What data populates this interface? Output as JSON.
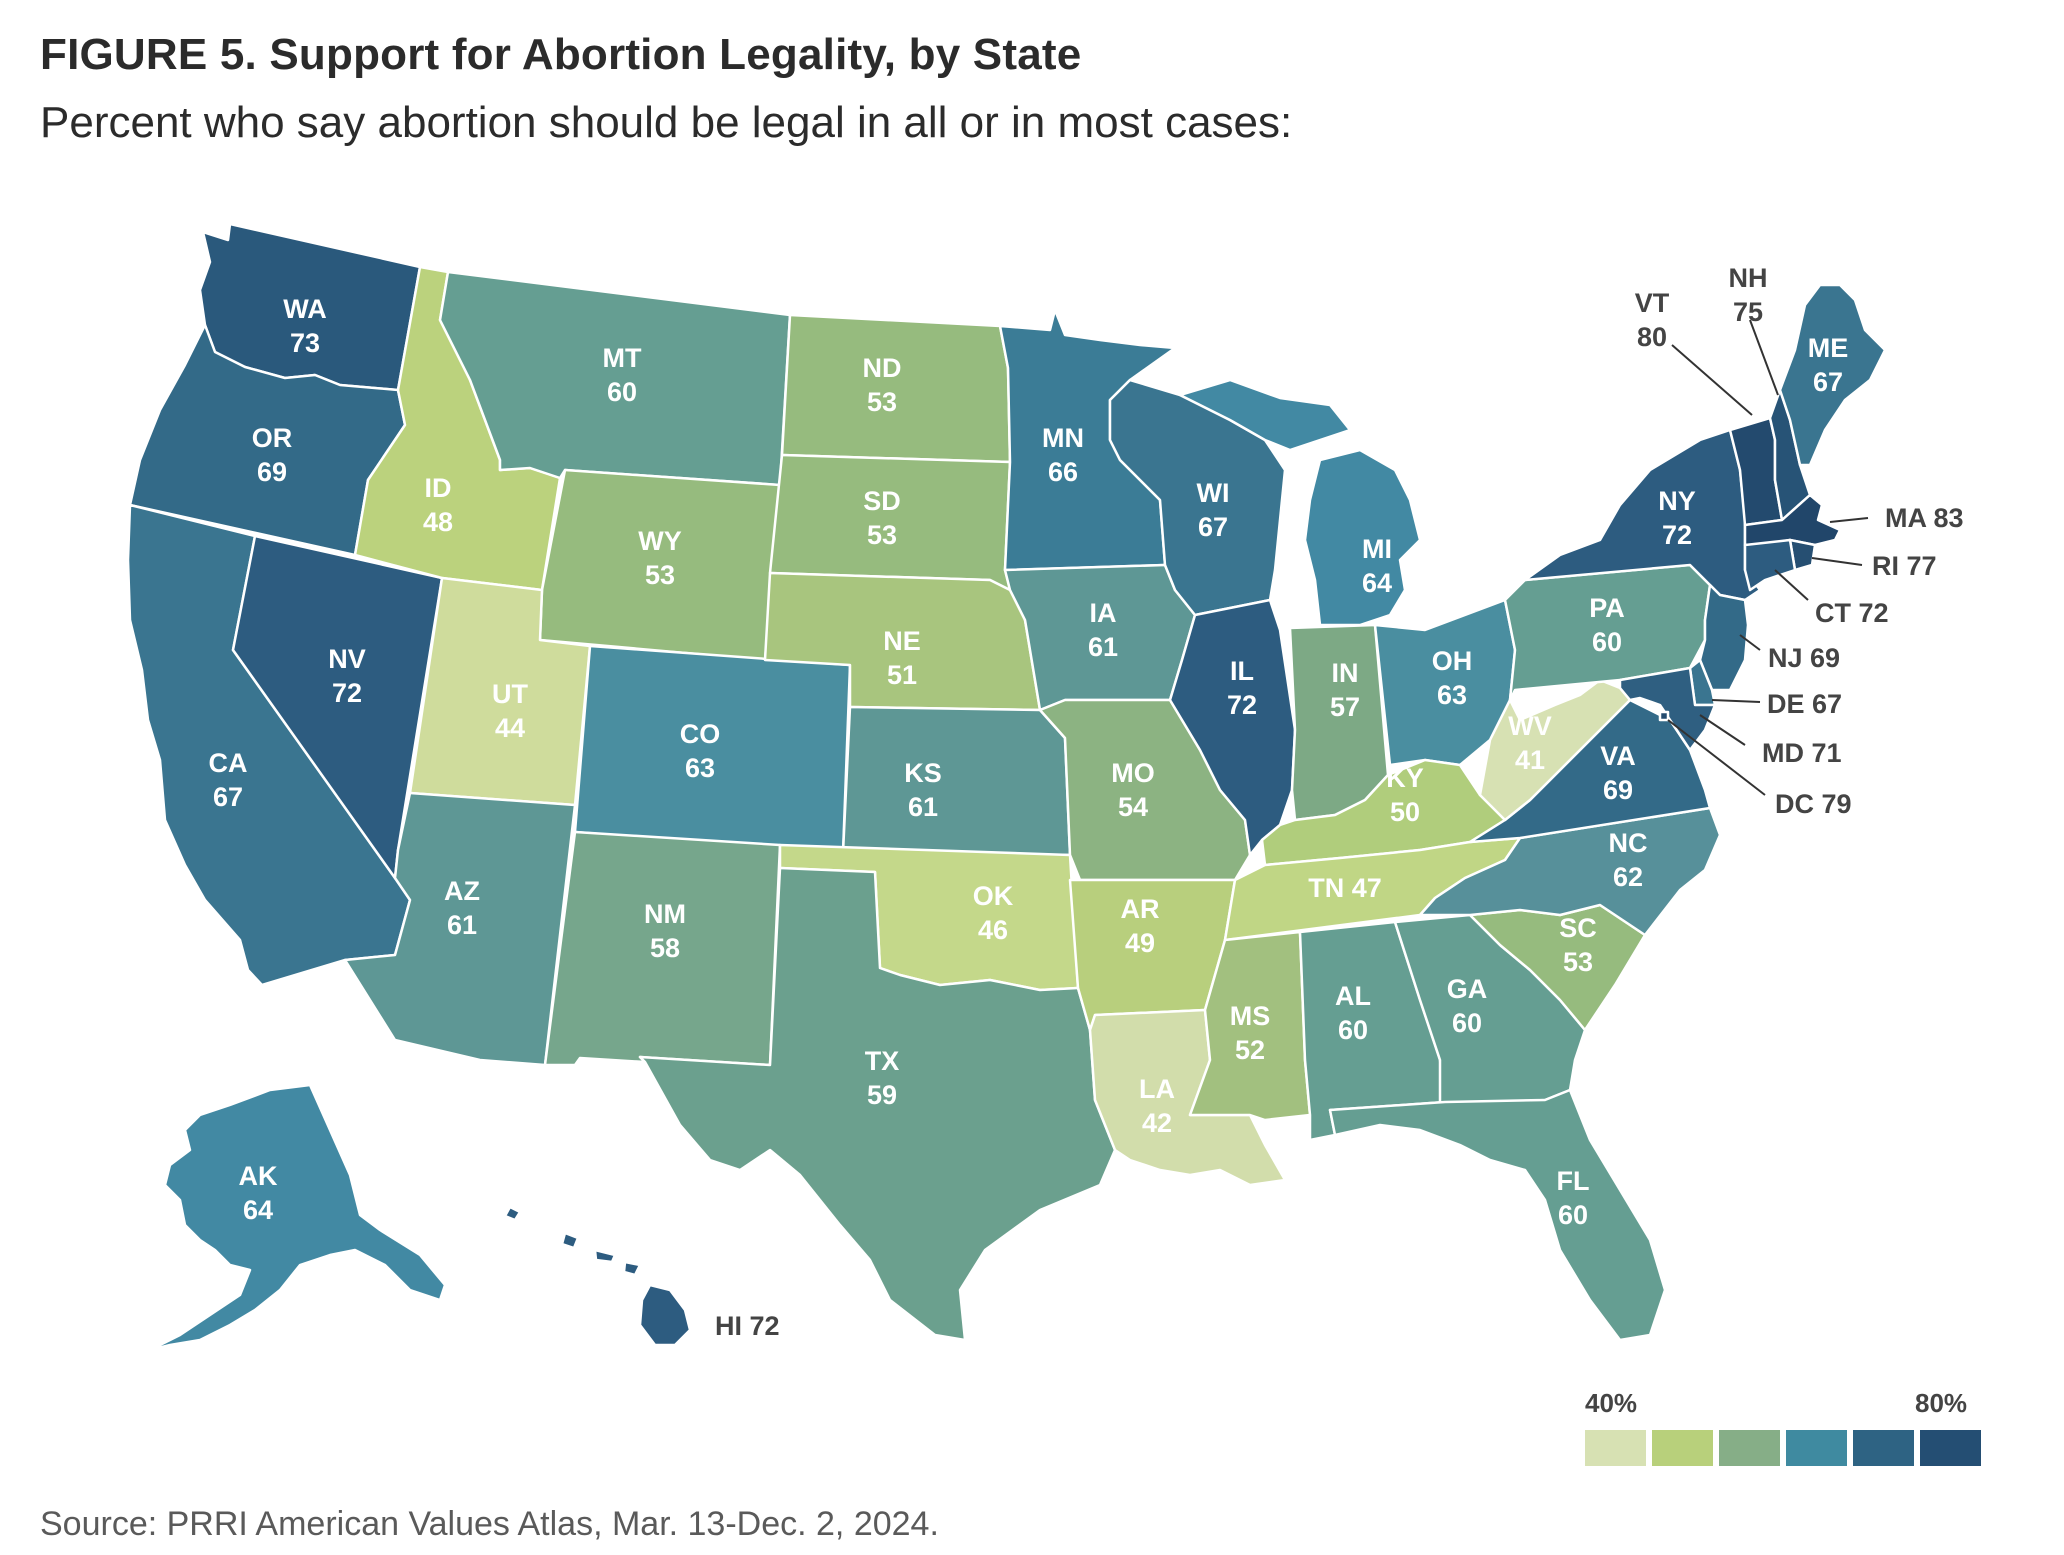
{
  "header": {
    "title": "FIGURE 5. Support for Abortion Legality, by State",
    "subtitle": "Percent who say abortion should be legal in all or in most cases:"
  },
  "legend": {
    "low_label": "40%",
    "high_label": "80%",
    "colors": [
      "#d7e1b3",
      "#b8d07b",
      "#86ae87",
      "#3f8aa0",
      "#2e6383",
      "#244e73"
    ]
  },
  "source": "Source: PRRI American Values Atlas, Mar. 13-Dec. 2, 2024.",
  "colors": {
    "c44": "#cfdc9c",
    "c41": "#d7e1b3",
    "c42": "#d2ddab",
    "c46": "#c4d88a",
    "c47": "#c0d685",
    "c48": "#bbd27d",
    "c49": "#b8cf7d",
    "c50": "#b0cd7c",
    "c51": "#a8c57e",
    "c52": "#a2c07f",
    "c53": "#96bb7e",
    "c54": "#8cb382",
    "c57": "#7da985",
    "c58": "#76a68c",
    "c59": "#6ba08e",
    "c60": "#659e92",
    "c61": "#5e9795",
    "c62": "#57909a",
    "c63": "#4a8ea0",
    "c64": "#4289a3",
    "c66": "#3b7c96",
    "c67": "#3a7590",
    "c69": "#336a88",
    "c71": "#2f5f81",
    "c72": "#2d5c80",
    "c73": "#2a597c",
    "c75": "#275376",
    "c77": "#264f72",
    "c79": "#244b6f",
    "c80": "#234a6e",
    "c83": "#21466a"
  },
  "chart_data": {
    "type": "choropleth",
    "title": "FIGURE 5. Support for Abortion Legality, by State",
    "subtitle": "Percent who say abortion should be legal in all or in most cases:",
    "legend_range": [
      40,
      80
    ],
    "states": [
      {
        "abbr": "WA",
        "value": 73
      },
      {
        "abbr": "OR",
        "value": 69
      },
      {
        "abbr": "CA",
        "value": 67
      },
      {
        "abbr": "NV",
        "value": 72
      },
      {
        "abbr": "ID",
        "value": 48
      },
      {
        "abbr": "MT",
        "value": 60
      },
      {
        "abbr": "WY",
        "value": 53
      },
      {
        "abbr": "UT",
        "value": 44
      },
      {
        "abbr": "AZ",
        "value": 61
      },
      {
        "abbr": "CO",
        "value": 63
      },
      {
        "abbr": "NM",
        "value": 58
      },
      {
        "abbr": "ND",
        "value": 53
      },
      {
        "abbr": "SD",
        "value": 53
      },
      {
        "abbr": "NE",
        "value": 51
      },
      {
        "abbr": "KS",
        "value": 61
      },
      {
        "abbr": "OK",
        "value": 46
      },
      {
        "abbr": "TX",
        "value": 59
      },
      {
        "abbr": "MN",
        "value": 66
      },
      {
        "abbr": "IA",
        "value": 61
      },
      {
        "abbr": "MO",
        "value": 54
      },
      {
        "abbr": "AR",
        "value": 49
      },
      {
        "abbr": "LA",
        "value": 42
      },
      {
        "abbr": "WI",
        "value": 67
      },
      {
        "abbr": "IL",
        "value": 72
      },
      {
        "abbr": "MI",
        "value": 64
      },
      {
        "abbr": "IN",
        "value": 57
      },
      {
        "abbr": "OH",
        "value": 63
      },
      {
        "abbr": "KY",
        "value": 50
      },
      {
        "abbr": "TN",
        "value": 47
      },
      {
        "abbr": "MS",
        "value": 52
      },
      {
        "abbr": "AL",
        "value": 60
      },
      {
        "abbr": "GA",
        "value": 60
      },
      {
        "abbr": "FL",
        "value": 60
      },
      {
        "abbr": "SC",
        "value": 53
      },
      {
        "abbr": "NC",
        "value": 62
      },
      {
        "abbr": "VA",
        "value": 69
      },
      {
        "abbr": "WV",
        "value": 41
      },
      {
        "abbr": "PA",
        "value": 60
      },
      {
        "abbr": "NY",
        "value": 72
      },
      {
        "abbr": "VT",
        "value": 80
      },
      {
        "abbr": "NH",
        "value": 75
      },
      {
        "abbr": "ME",
        "value": 67
      },
      {
        "abbr": "MA",
        "value": 83
      },
      {
        "abbr": "RI",
        "value": 77
      },
      {
        "abbr": "CT",
        "value": 72
      },
      {
        "abbr": "NJ",
        "value": 69
      },
      {
        "abbr": "DE",
        "value": 67
      },
      {
        "abbr": "MD",
        "value": 71
      },
      {
        "abbr": "DC",
        "value": 79
      },
      {
        "abbr": "AK",
        "value": 64
      },
      {
        "abbr": "HI",
        "value": 72
      }
    ]
  },
  "labels": {
    "WA": {
      "abbr": "WA",
      "value": "73"
    },
    "OR": {
      "abbr": "OR",
      "value": "69"
    },
    "CA": {
      "abbr": "CA",
      "value": "67"
    },
    "NV": {
      "abbr": "NV",
      "value": "72"
    },
    "ID": {
      "abbr": "ID",
      "value": "48"
    },
    "MT": {
      "abbr": "MT",
      "value": "60"
    },
    "WY": {
      "abbr": "WY",
      "value": "53"
    },
    "UT": {
      "abbr": "UT",
      "value": "44"
    },
    "AZ": {
      "abbr": "AZ",
      "value": "61"
    },
    "CO": {
      "abbr": "CO",
      "value": "63"
    },
    "NM": {
      "abbr": "NM",
      "value": "58"
    },
    "ND": {
      "abbr": "ND",
      "value": "53"
    },
    "SD": {
      "abbr": "SD",
      "value": "53"
    },
    "NE": {
      "abbr": "NE",
      "value": "51"
    },
    "KS": {
      "abbr": "KS",
      "value": "61"
    },
    "OK": {
      "abbr": "OK",
      "value": "46"
    },
    "TX": {
      "abbr": "TX",
      "value": "59"
    },
    "MN": {
      "abbr": "MN",
      "value": "66"
    },
    "IA": {
      "abbr": "IA",
      "value": "61"
    },
    "MO": {
      "abbr": "MO",
      "value": "54"
    },
    "AR": {
      "abbr": "AR",
      "value": "49"
    },
    "LA": {
      "abbr": "LA",
      "value": "42"
    },
    "WI": {
      "abbr": "WI",
      "value": "67"
    },
    "IL": {
      "abbr": "IL",
      "value": "72"
    },
    "MI": {
      "abbr": "MI",
      "value": "64"
    },
    "IN": {
      "abbr": "IN",
      "value": "57"
    },
    "OH": {
      "abbr": "OH",
      "value": "63"
    },
    "KY": {
      "abbr": "KY",
      "value": "50"
    },
    "TN": {
      "text": "TN 47"
    },
    "MS": {
      "abbr": "MS",
      "value": "52"
    },
    "AL": {
      "abbr": "AL",
      "value": "60"
    },
    "GA": {
      "abbr": "GA",
      "value": "60"
    },
    "FL": {
      "abbr": "FL",
      "value": "60"
    },
    "SC": {
      "abbr": "SC",
      "value": "53"
    },
    "NC": {
      "abbr": "NC",
      "value": "62"
    },
    "VA": {
      "abbr": "VA",
      "value": "69"
    },
    "WV": {
      "abbr": "WV",
      "value": "41"
    },
    "PA": {
      "abbr": "PA",
      "value": "60"
    },
    "NY": {
      "abbr": "NY",
      "value": "72"
    },
    "ME": {
      "abbr": "ME",
      "value": "67"
    },
    "AK": {
      "abbr": "AK",
      "value": "64"
    },
    "VT": {
      "abbr": "VT",
      "value": "80"
    },
    "NH": {
      "abbr": "NH",
      "value": "75"
    },
    "MA": {
      "text": "MA 83"
    },
    "RI": {
      "text": "RI 77"
    },
    "CT": {
      "text": "CT 72"
    },
    "NJ": {
      "text": "NJ 69"
    },
    "DE": {
      "text": "DE 67"
    },
    "MD": {
      "text": "MD 71"
    },
    "DC": {
      "text": "DC 79"
    },
    "HI": {
      "text": "HI 72"
    }
  }
}
